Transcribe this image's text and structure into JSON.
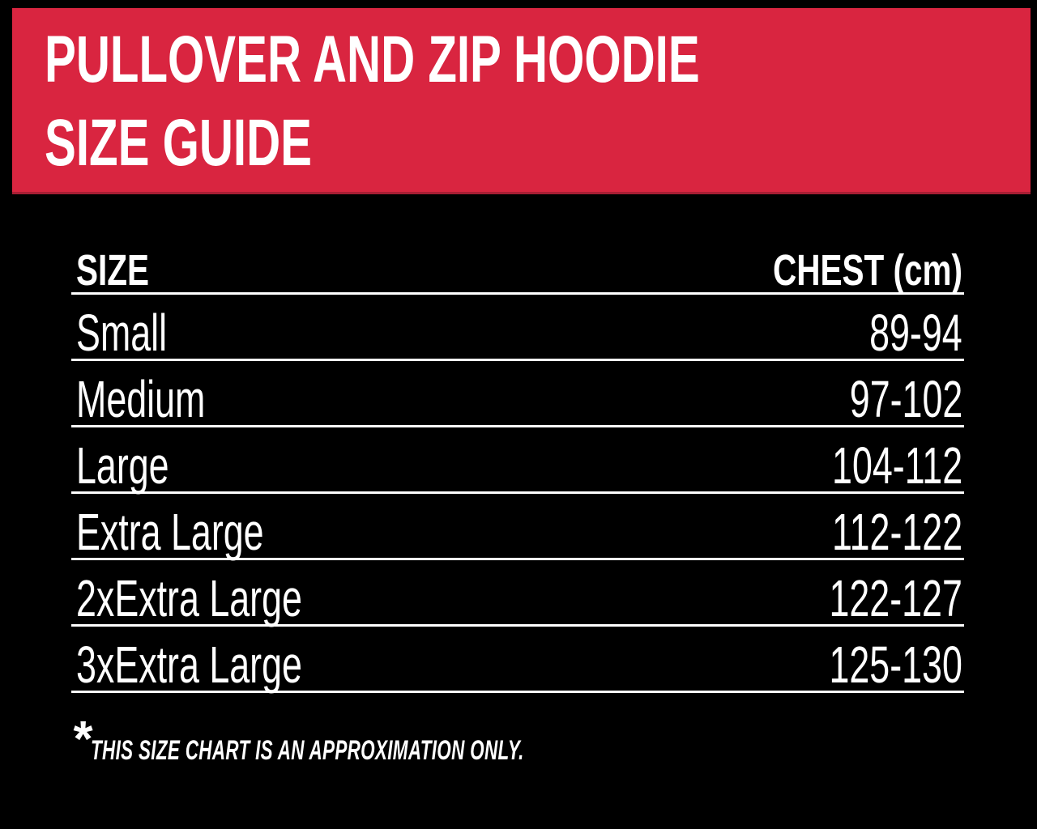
{
  "banner": {
    "title_line1": "PULLOVER AND ZIP HOODIE",
    "title_line2": "SIZE GUIDE"
  },
  "table": {
    "size_header": "SIZE",
    "chest_header": "CHEST (cm)",
    "rows": [
      {
        "size": "Small",
        "chest": "89-94"
      },
      {
        "size": "Medium",
        "chest": "97-102"
      },
      {
        "size": "Large",
        "chest": "104-112"
      },
      {
        "size": "Extra Large",
        "chest": "112-122"
      },
      {
        "size": "2xExtra Large",
        "chest": "122-127"
      },
      {
        "size": "3xExtra Large",
        "chest": "125-130"
      }
    ]
  },
  "footnote": {
    "asterisk": "*",
    "text": "THIS SIZE CHART IS AN APPROXIMATION ONLY."
  },
  "colors": {
    "banner_red": "#D92540",
    "banner_red_dark_edge": "#A81E34",
    "background": "#000000",
    "text_white": "#FFFFFF",
    "row_underline": "#FFFFFF"
  }
}
